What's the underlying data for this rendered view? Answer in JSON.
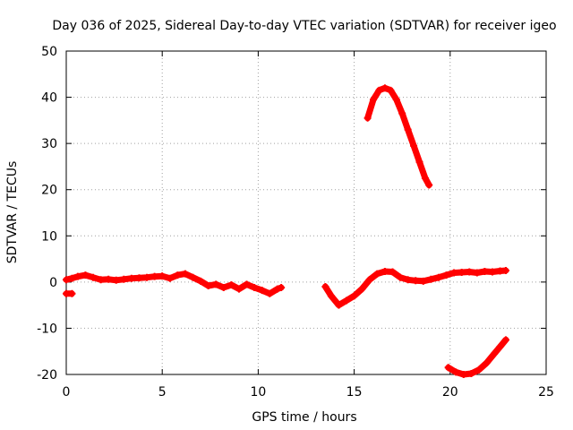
{
  "chart_data": {
    "type": "scatter",
    "title": "Day 036 of 2025, Sidereal Day-to-day VTEC variation (SDTVAR) for receiver igeo",
    "xlabel": "GPS time / hours",
    "ylabel": "SDTVAR / TECUs",
    "xlim": [
      0,
      25
    ],
    "ylim": [
      -20,
      50
    ],
    "xticks": [
      0,
      5,
      10,
      15,
      20,
      25
    ],
    "yticks": [
      -20,
      -10,
      0,
      10,
      20,
      30,
      40,
      50
    ],
    "grid": true,
    "marker": "+",
    "series": [
      {
        "name": "SDTVAR",
        "color": "#ff0000",
        "segments": [
          {
            "x": [
              0.0,
              0.3,
              0.6,
              1.0,
              1.4,
              1.8,
              2.2,
              2.6,
              3.0,
              3.4,
              3.8,
              4.2,
              4.6,
              5.0,
              5.4,
              5.8,
              6.2,
              6.6,
              7.0,
              7.4,
              7.8,
              8.2,
              8.6,
              9.0,
              9.4,
              9.8,
              10.2,
              10.6,
              11.0,
              11.2
            ],
            "y": [
              0.5,
              0.8,
              1.2,
              1.5,
              1.0,
              0.5,
              0.6,
              0.4,
              0.6,
              0.8,
              0.9,
              1.0,
              1.2,
              1.3,
              0.8,
              1.5,
              1.8,
              1.0,
              0.2,
              -0.8,
              -0.5,
              -1.2,
              -0.6,
              -1.5,
              -0.5,
              -1.2,
              -1.8,
              -2.5,
              -1.5,
              -1.2
            ]
          },
          {
            "x": [
              0.0,
              0.3
            ],
            "y": [
              -2.5,
              -2.5
            ]
          },
          {
            "x": [
              13.5,
              13.8,
              14.2,
              14.6,
              15.0,
              15.4,
              15.8,
              16.2,
              16.6,
              17.0,
              17.4,
              17.8,
              18.2,
              18.6,
              19.0,
              19.4,
              19.8,
              20.2,
              20.6,
              21.0,
              21.4,
              21.8,
              22.2,
              22.6,
              22.9
            ],
            "y": [
              -1.0,
              -3.0,
              -5.0,
              -4.0,
              -3.0,
              -1.5,
              0.5,
              1.8,
              2.3,
              2.2,
              1.0,
              0.5,
              0.3,
              0.2,
              0.6,
              1.0,
              1.5,
              2.0,
              2.1,
              2.2,
              2.0,
              2.3,
              2.2,
              2.4,
              2.5
            ]
          },
          {
            "x": [
              15.7,
              16.0,
              16.3,
              16.6,
              16.9,
              17.2,
              17.5,
              17.8,
              18.1,
              18.4,
              18.7,
              18.9
            ],
            "y": [
              35.5,
              39.5,
              41.5,
              42.0,
              41.5,
              39.5,
              36.5,
              33.0,
              29.5,
              26.0,
              22.5,
              21.0
            ]
          },
          {
            "x": [
              19.9,
              20.3,
              20.7,
              21.1,
              21.5,
              21.9,
              22.3,
              22.6,
              22.9
            ],
            "y": [
              -18.5,
              -19.5,
              -20.0,
              -19.8,
              -19.0,
              -17.5,
              -15.5,
              -14.0,
              -12.5
            ]
          }
        ]
      }
    ]
  }
}
